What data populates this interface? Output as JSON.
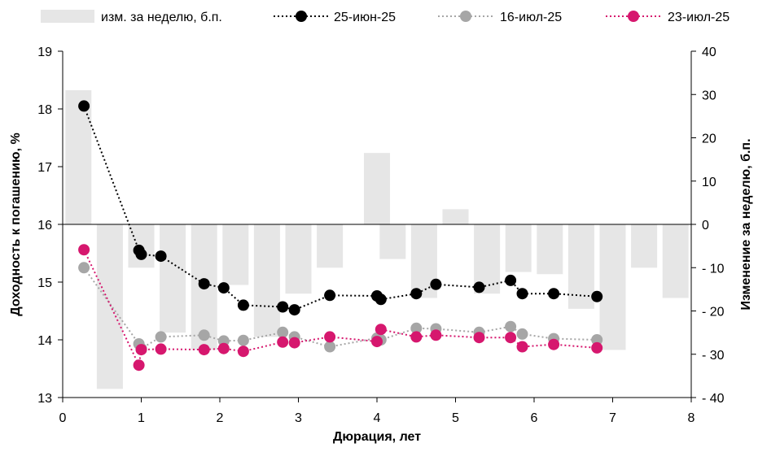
{
  "chart_data": {
    "type": "bar+line",
    "xlabel": "Дюрация, лет",
    "ylabel_left": "Доходность к погашению, %",
    "ylabel_right": "Изменение за неделю, б.п.",
    "xlim": [
      0,
      8
    ],
    "ylim_left": [
      13,
      19
    ],
    "ylim_right": [
      -40,
      40
    ],
    "x_ticks": [
      "0",
      "1",
      "2",
      "3",
      "4",
      "5",
      "6",
      "7",
      "8"
    ],
    "y_left_ticks": [
      "13",
      "14",
      "15",
      "16",
      "17",
      "18",
      "19"
    ],
    "y_right_ticks": [
      "40",
      "30",
      "20",
      "10",
      "0",
      "- 10",
      "- 20",
      "- 30",
      "- 40"
    ],
    "grid": false,
    "legend_position": "top",
    "bars": {
      "name": "изм. за неделю, б.п.",
      "color": "#e6e6e6",
      "points": [
        {
          "x": 0.2,
          "value": 31
        },
        {
          "x": 0.6,
          "value": -38
        },
        {
          "x": 1.0,
          "value": -10
        },
        {
          "x": 1.4,
          "value": -25
        },
        {
          "x": 1.8,
          "value": -29
        },
        {
          "x": 2.2,
          "value": -14
        },
        {
          "x": 2.6,
          "value": -26
        },
        {
          "x": 3.0,
          "value": -16
        },
        {
          "x": 3.4,
          "value": -10
        },
        {
          "x": 4.0,
          "value": 16.5
        },
        {
          "x": 4.2,
          "value": -8
        },
        {
          "x": 4.6,
          "value": -17
        },
        {
          "x": 5.0,
          "value": 3.5
        },
        {
          "x": 5.4,
          "value": -16
        },
        {
          "x": 5.8,
          "value": -11
        },
        {
          "x": 6.2,
          "value": -11.5
        },
        {
          "x": 6.6,
          "value": -19.5
        },
        {
          "x": 7.0,
          "value": -29
        },
        {
          "x": 7.4,
          "value": -10
        },
        {
          "x": 7.8,
          "value": -17
        }
      ]
    },
    "series": [
      {
        "name": "25-июн-25",
        "color": "#000000",
        "points": [
          [
            0.27,
            18.05
          ],
          [
            0.97,
            15.55
          ],
          [
            1.0,
            15.48
          ],
          [
            1.25,
            15.45
          ],
          [
            1.8,
            14.97
          ],
          [
            2.05,
            14.9
          ],
          [
            2.3,
            14.6
          ],
          [
            2.8,
            14.57
          ],
          [
            2.95,
            14.52
          ],
          [
            3.4,
            14.77
          ],
          [
            4.0,
            14.76
          ],
          [
            4.05,
            14.7
          ],
          [
            4.5,
            14.8
          ],
          [
            4.75,
            14.96
          ],
          [
            5.3,
            14.91
          ],
          [
            5.7,
            15.03
          ],
          [
            5.85,
            14.8
          ],
          [
            6.25,
            14.8
          ],
          [
            6.8,
            14.75
          ]
        ]
      },
      {
        "name": "16-июл-25",
        "color": "#a6a6a6",
        "points": [
          [
            0.27,
            15.25
          ],
          [
            0.97,
            13.93
          ],
          [
            1.0,
            13.85
          ],
          [
            1.25,
            14.05
          ],
          [
            1.8,
            14.08
          ],
          [
            2.05,
            13.98
          ],
          [
            2.3,
            13.99
          ],
          [
            2.8,
            14.13
          ],
          [
            2.95,
            14.05
          ],
          [
            3.4,
            13.88
          ],
          [
            4.0,
            14.03
          ],
          [
            4.05,
            14.0
          ],
          [
            4.5,
            14.2
          ],
          [
            4.75,
            14.19
          ],
          [
            5.3,
            14.13
          ],
          [
            5.7,
            14.23
          ],
          [
            5.85,
            14.1
          ],
          [
            6.25,
            14.02
          ],
          [
            6.8,
            14.0
          ]
        ]
      },
      {
        "name": "23-июл-25",
        "color": "#d6176e",
        "points": [
          [
            0.27,
            15.56
          ],
          [
            0.97,
            13.56
          ],
          [
            1.0,
            13.83
          ],
          [
            1.25,
            13.84
          ],
          [
            1.8,
            13.83
          ],
          [
            2.05,
            13.85
          ],
          [
            2.3,
            13.8
          ],
          [
            2.8,
            13.96
          ],
          [
            2.95,
            13.95
          ],
          [
            3.4,
            14.05
          ],
          [
            4.0,
            13.97
          ],
          [
            4.05,
            14.18
          ],
          [
            4.5,
            14.05
          ],
          [
            4.75,
            14.08
          ],
          [
            5.3,
            14.04
          ],
          [
            5.7,
            14.04
          ],
          [
            5.85,
            13.88
          ],
          [
            6.25,
            13.92
          ],
          [
            6.8,
            13.86
          ]
        ]
      }
    ]
  }
}
